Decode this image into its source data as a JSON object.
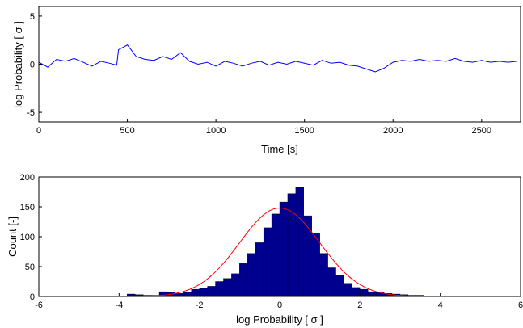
{
  "chart_data": [
    {
      "type": "line",
      "title": "",
      "xlabel": "Time [s]",
      "ylabel": "log Probability [ σ ]",
      "xlim": [
        0,
        2720
      ],
      "ylim": [
        -6,
        6
      ],
      "xticks": [
        0,
        500,
        1000,
        1500,
        2000,
        2500
      ],
      "yticks": [
        -5,
        0,
        5
      ],
      "grid": false,
      "series": [
        {
          "color": "#0000ff",
          "x": [
            0,
            50,
            100,
            150,
            200,
            250,
            300,
            350,
            400,
            440,
            450,
            500,
            550,
            600,
            650,
            700,
            750,
            800,
            850,
            900,
            950,
            1000,
            1050,
            1100,
            1150,
            1200,
            1250,
            1300,
            1350,
            1400,
            1450,
            1500,
            1550,
            1600,
            1650,
            1700,
            1750,
            1800,
            1850,
            1900,
            1950,
            2000,
            2050,
            2100,
            2150,
            2200,
            2250,
            2300,
            2350,
            2400,
            2450,
            2500,
            2550,
            2600,
            2650,
            2700
          ],
          "y": [
            0.2,
            -0.3,
            0.5,
            0.3,
            0.6,
            0.2,
            -0.2,
            0.3,
            0.1,
            -0.1,
            1.5,
            2.0,
            0.8,
            0.5,
            0.4,
            0.8,
            0.5,
            1.2,
            0.3,
            0.0,
            0.2,
            -0.2,
            0.3,
            0.1,
            -0.2,
            0.1,
            0.3,
            -0.1,
            0.2,
            0.0,
            0.3,
            0.1,
            -0.1,
            0.4,
            0.1,
            0.2,
            -0.1,
            -0.2,
            -0.5,
            -0.8,
            -0.4,
            0.2,
            0.4,
            0.3,
            0.5,
            0.3,
            0.4,
            0.3,
            0.6,
            0.3,
            0.2,
            0.4,
            0.2,
            0.3,
            0.2,
            0.3
          ]
        }
      ]
    },
    {
      "type": "bar",
      "title": "",
      "xlabel": "log Probability [ σ ]",
      "ylabel": "Count [-]",
      "xlim": [
        -6,
        6
      ],
      "ylim": [
        0,
        200
      ],
      "xticks": [
        -6,
        -4,
        -2,
        0,
        2,
        4,
        6
      ],
      "yticks": [
        0,
        50,
        100,
        150,
        200
      ],
      "grid": false,
      "bar_color": "#00008f",
      "bin_width": 0.2,
      "bin_centers": [
        -3.9,
        -3.7,
        -3.5,
        -3.3,
        -3.1,
        -2.9,
        -2.7,
        -2.5,
        -2.3,
        -2.1,
        -1.9,
        -1.7,
        -1.5,
        -1.3,
        -1.1,
        -0.9,
        -0.7,
        -0.5,
        -0.3,
        -0.1,
        0.1,
        0.3,
        0.5,
        0.7,
        0.9,
        1.1,
        1.3,
        1.5,
        1.7,
        1.9,
        2.1,
        2.3,
        2.5,
        2.7,
        2.9,
        3.1,
        3.3,
        3.5,
        3.7,
        3.9,
        4.1,
        4.3,
        4.5,
        4.7,
        4.9,
        5.1,
        5.3,
        5.5
      ],
      "counts": [
        1,
        4,
        3,
        2,
        2,
        8,
        7,
        5,
        7,
        12,
        14,
        17,
        25,
        30,
        38,
        55,
        72,
        90,
        115,
        138,
        158,
        172,
        183,
        135,
        105,
        72,
        48,
        35,
        22,
        15,
        12,
        8,
        7,
        5,
        4,
        3,
        2,
        2,
        1,
        1,
        1,
        0,
        1,
        1,
        0,
        0,
        1,
        0
      ],
      "fit_curve": {
        "type": "gaussian",
        "color": "#ff0000",
        "mean": 0.0,
        "sigma": 1.0,
        "peak": 148
      }
    }
  ]
}
